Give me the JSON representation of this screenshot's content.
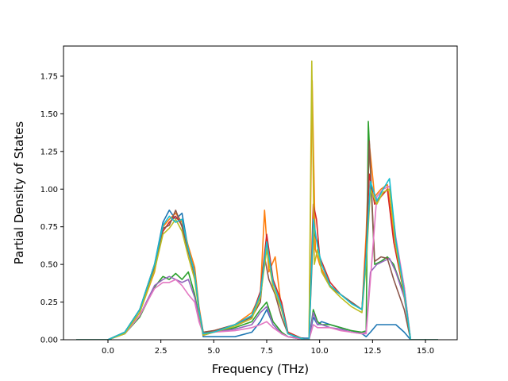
{
  "chart_data": {
    "type": "line",
    "title": "",
    "xlabel": "Frequency (THz)",
    "ylabel": "Partial Density of States",
    "xlim": [
      -2.1,
      16.5
    ],
    "ylim": [
      0.0,
      1.95
    ],
    "xticks": [
      0.0,
      2.5,
      5.0,
      7.5,
      10.0,
      12.5,
      15.0
    ],
    "xtick_labels": [
      "0.0",
      "2.5",
      "5.0",
      "7.5",
      "10.0",
      "12.5",
      "15.0"
    ],
    "yticks": [
      0.0,
      0.25,
      0.5,
      0.75,
      1.0,
      1.25,
      1.5,
      1.75
    ],
    "ytick_labels": [
      "0.00",
      "0.25",
      "0.50",
      "0.75",
      "1.00",
      "1.25",
      "1.50",
      "1.75"
    ],
    "grid": false,
    "legend": "none",
    "series": [
      {
        "color": "#1f77b4",
        "x": [
          -1.5,
          0.0,
          0.8,
          1.5,
          2.2,
          2.6,
          2.9,
          3.2,
          3.5,
          3.8,
          4.1,
          4.3,
          4.5,
          5.0,
          6.0,
          6.8,
          7.2,
          7.5,
          7.8,
          8.2,
          8.5,
          9.3,
          9.5,
          9.7,
          9.9,
          10.1,
          10.5,
          11.0,
          11.5,
          12.0,
          12.2,
          12.4,
          12.7,
          13.0,
          13.3,
          13.6,
          14.0,
          14.3,
          15.6
        ],
        "y": [
          0,
          0,
          0.05,
          0.2,
          0.5,
          0.78,
          0.86,
          0.8,
          0.84,
          0.6,
          0.45,
          0.2,
          0.02,
          0.02,
          0.02,
          0.05,
          0.12,
          0.2,
          0.1,
          0.04,
          0.02,
          0.01,
          0.01,
          0.15,
          0.1,
          0.12,
          0.1,
          0.08,
          0.06,
          0.04,
          0.02,
          0.05,
          0.1,
          0.1,
          0.1,
          0.1,
          0.05,
          0.0,
          0.0
        ]
      },
      {
        "color": "#ff7f0e",
        "x": [
          -1.5,
          0.0,
          0.8,
          1.5,
          2.2,
          2.6,
          2.9,
          3.2,
          3.5,
          3.8,
          4.1,
          4.3,
          4.5,
          5.0,
          6.0,
          6.8,
          7.2,
          7.4,
          7.6,
          7.9,
          8.2,
          8.5,
          9.3,
          9.5,
          9.65,
          9.8,
          10.0,
          10.5,
          11.0,
          11.5,
          12.0,
          12.2,
          12.35,
          12.6,
          12.9,
          13.2,
          13.5,
          14.0,
          14.3,
          15.6
        ],
        "y": [
          0,
          0,
          0.04,
          0.18,
          0.45,
          0.75,
          0.8,
          0.84,
          0.78,
          0.62,
          0.48,
          0.22,
          0.05,
          0.06,
          0.1,
          0.18,
          0.3,
          0.86,
          0.45,
          0.55,
          0.2,
          0.05,
          0.0,
          0.0,
          1.72,
          0.6,
          0.5,
          0.35,
          0.3,
          0.25,
          0.2,
          0.7,
          1.3,
          0.95,
          1.0,
          1.03,
          0.7,
          0.35,
          0.0,
          0.0
        ]
      },
      {
        "color": "#2ca02c",
        "x": [
          -1.5,
          0.0,
          0.8,
          1.5,
          2.2,
          2.6,
          2.9,
          3.2,
          3.5,
          3.8,
          4.1,
          4.3,
          4.5,
          5.0,
          6.0,
          6.8,
          7.2,
          7.5,
          7.8,
          8.2,
          8.5,
          9.3,
          9.5,
          9.7,
          9.9,
          10.1,
          10.5,
          11.0,
          11.5,
          12.0,
          12.2,
          12.3,
          12.6,
          12.9,
          13.2,
          13.5,
          14.0,
          14.3,
          15.6
        ],
        "y": [
          0,
          0,
          0.04,
          0.15,
          0.35,
          0.42,
          0.4,
          0.44,
          0.4,
          0.45,
          0.3,
          0.15,
          0.05,
          0.05,
          0.08,
          0.12,
          0.2,
          0.25,
          0.12,
          0.05,
          0.02,
          0.0,
          0.0,
          0.2,
          0.12,
          0.1,
          0.1,
          0.08,
          0.06,
          0.05,
          0.06,
          1.45,
          0.5,
          0.52,
          0.55,
          0.5,
          0.3,
          0.0,
          0.0
        ]
      },
      {
        "color": "#d62728",
        "x": [
          -1.5,
          0.0,
          0.8,
          1.5,
          2.2,
          2.6,
          2.9,
          3.2,
          3.5,
          3.8,
          4.1,
          4.3,
          4.5,
          5.0,
          6.0,
          6.8,
          7.2,
          7.5,
          7.8,
          8.2,
          8.5,
          9.3,
          9.5,
          9.7,
          9.85,
          10.0,
          10.5,
          11.0,
          11.5,
          12.0,
          12.2,
          12.35,
          12.6,
          12.9,
          13.2,
          13.5,
          14.0,
          14.3,
          15.6
        ],
        "y": [
          0,
          0,
          0.05,
          0.2,
          0.5,
          0.72,
          0.78,
          0.82,
          0.76,
          0.6,
          0.42,
          0.2,
          0.03,
          0.05,
          0.1,
          0.16,
          0.32,
          0.7,
          0.4,
          0.25,
          0.05,
          0.0,
          0.0,
          0.9,
          0.8,
          0.55,
          0.38,
          0.3,
          0.25,
          0.2,
          0.6,
          1.1,
          0.9,
          0.95,
          1.0,
          0.65,
          0.3,
          0.0,
          0.0
        ]
      },
      {
        "color": "#9467bd",
        "x": [
          -1.5,
          0.0,
          0.8,
          1.5,
          2.2,
          2.6,
          2.9,
          3.2,
          3.5,
          3.8,
          4.1,
          4.3,
          4.5,
          5.0,
          6.0,
          6.8,
          7.2,
          7.5,
          7.8,
          8.2,
          8.5,
          9.3,
          9.5,
          9.7,
          9.9,
          10.1,
          10.5,
          11.0,
          11.5,
          12.0,
          12.2,
          12.4,
          12.7,
          13.0,
          13.3,
          13.6,
          14.0,
          14.3,
          15.6
        ],
        "y": [
          0,
          0,
          0.04,
          0.16,
          0.36,
          0.4,
          0.42,
          0.4,
          0.38,
          0.4,
          0.28,
          0.14,
          0.04,
          0.05,
          0.07,
          0.1,
          0.18,
          0.22,
          0.1,
          0.04,
          0.02,
          0.0,
          0.0,
          0.18,
          0.1,
          0.1,
          0.08,
          0.07,
          0.05,
          0.04,
          0.05,
          0.45,
          0.5,
          0.52,
          0.54,
          0.45,
          0.28,
          0.0,
          0.0
        ]
      },
      {
        "color": "#8c564b",
        "x": [
          -1.5,
          0.0,
          0.8,
          1.5,
          2.2,
          2.6,
          2.9,
          3.2,
          3.5,
          3.8,
          4.1,
          4.3,
          4.5,
          5.0,
          6.0,
          6.8,
          7.2,
          7.4,
          7.6,
          7.9,
          8.2,
          8.5,
          9.3,
          9.5,
          9.7,
          9.9,
          10.1,
          10.5,
          11.0,
          11.5,
          12.0,
          12.2,
          12.35,
          12.6,
          12.9,
          13.2,
          13.5,
          14.0,
          14.3,
          15.6
        ],
        "y": [
          0,
          0,
          0.05,
          0.2,
          0.48,
          0.74,
          0.76,
          0.86,
          0.75,
          0.58,
          0.44,
          0.2,
          0.05,
          0.06,
          0.1,
          0.15,
          0.25,
          0.55,
          0.4,
          0.3,
          0.15,
          0.04,
          0.0,
          0.0,
          0.72,
          0.65,
          0.45,
          0.35,
          0.3,
          0.25,
          0.2,
          0.55,
          1.32,
          0.52,
          0.55,
          0.54,
          0.4,
          0.2,
          0.0,
          0.0
        ]
      },
      {
        "color": "#e377c2",
        "x": [
          -1.5,
          0.0,
          0.8,
          1.5,
          2.2,
          2.6,
          2.9,
          3.2,
          3.5,
          3.8,
          4.1,
          4.3,
          4.5,
          5.0,
          6.0,
          6.8,
          7.2,
          7.5,
          7.8,
          8.2,
          8.5,
          9.3,
          9.5,
          9.7,
          9.9,
          10.1,
          10.5,
          11.0,
          11.5,
          12.0,
          12.2,
          12.4,
          12.7,
          13.0,
          13.3,
          13.6,
          14.0,
          14.3,
          15.6
        ],
        "y": [
          0,
          0,
          0.04,
          0.16,
          0.34,
          0.38,
          0.38,
          0.4,
          0.36,
          0.3,
          0.25,
          0.12,
          0.04,
          0.05,
          0.06,
          0.08,
          0.1,
          0.12,
          0.08,
          0.04,
          0.02,
          0.0,
          0.0,
          0.1,
          0.08,
          0.08,
          0.08,
          0.06,
          0.05,
          0.04,
          0.04,
          0.4,
          0.95,
          1.0,
          1.02,
          0.68,
          0.35,
          0.0,
          0.0
        ]
      },
      {
        "color": "#bcbd22",
        "x": [
          -1.5,
          0.0,
          0.8,
          1.5,
          2.2,
          2.6,
          2.9,
          3.2,
          3.5,
          3.8,
          4.1,
          4.3,
          4.5,
          5.0,
          6.0,
          6.8,
          7.2,
          7.5,
          7.8,
          8.2,
          8.5,
          9.3,
          9.5,
          9.63,
          9.75,
          9.9,
          10.1,
          10.5,
          11.0,
          11.5,
          12.0,
          12.2,
          12.4,
          12.7,
          13.0,
          13.3,
          13.6,
          14.0,
          14.3,
          15.6
        ],
        "y": [
          0,
          0,
          0.04,
          0.18,
          0.46,
          0.7,
          0.74,
          0.8,
          0.72,
          0.55,
          0.4,
          0.18,
          0.03,
          0.05,
          0.09,
          0.14,
          0.28,
          0.6,
          0.35,
          0.2,
          0.04,
          0.0,
          0.0,
          1.85,
          0.5,
          0.6,
          0.45,
          0.35,
          0.28,
          0.22,
          0.18,
          0.5,
          1.0,
          0.9,
          0.98,
          1.0,
          0.62,
          0.3,
          0.0,
          0.0
        ]
      },
      {
        "color": "#17becf",
        "x": [
          -1.5,
          0.0,
          0.8,
          1.5,
          2.2,
          2.6,
          2.9,
          3.2,
          3.5,
          3.8,
          4.1,
          4.3,
          4.5,
          5.0,
          6.0,
          6.8,
          7.2,
          7.5,
          7.8,
          8.2,
          8.5,
          9.3,
          9.5,
          9.7,
          9.9,
          10.1,
          10.5,
          11.0,
          11.5,
          12.0,
          12.2,
          12.4,
          12.7,
          13.0,
          13.3,
          13.6,
          14.0,
          14.3,
          15.6
        ],
        "y": [
          0,
          0,
          0.05,
          0.2,
          0.5,
          0.76,
          0.82,
          0.78,
          0.8,
          0.6,
          0.44,
          0.2,
          0.04,
          0.05,
          0.1,
          0.16,
          0.3,
          0.65,
          0.38,
          0.22,
          0.04,
          0.0,
          0.0,
          0.8,
          0.62,
          0.5,
          0.36,
          0.3,
          0.24,
          0.2,
          0.55,
          1.05,
          0.92,
          1.0,
          1.07,
          0.66,
          0.32,
          0.0,
          0.0
        ]
      }
    ]
  }
}
